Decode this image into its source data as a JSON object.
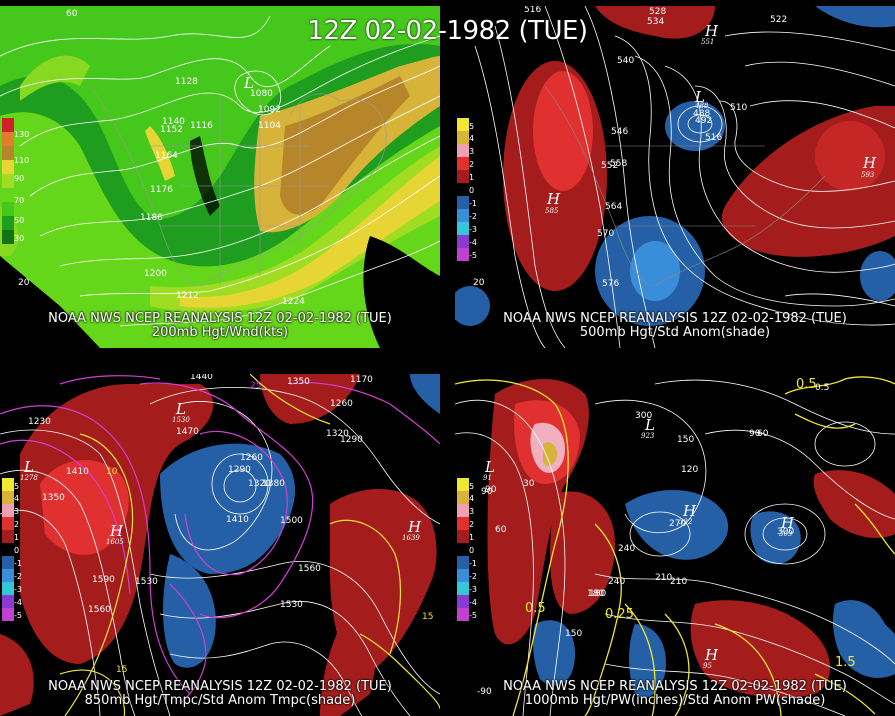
{
  "title": "12Z 02-02-1982 (TUE)",
  "panels": [
    {
      "caption_line1": "NOAA NWS NCEP REANALYSIS 12Z 02-02-1982 (TUE)",
      "caption_line2": "200mb Hgt/Wnd(kts)",
      "legend": [
        "130",
        "110",
        "90",
        "70",
        "50",
        "30"
      ],
      "labels": [
        "1128",
        "1080",
        "1092",
        "1104",
        "1116",
        "1140",
        "1152",
        "1164",
        "1176",
        "1188",
        "1200",
        "1212",
        "1224",
        "20",
        "60"
      ],
      "hl": [
        "L"
      ]
    },
    {
      "caption_line1": "NOAA NWS NCEP REANALYSIS 12Z 02-02-1982 (TUE)",
      "caption_line2": "500mb Hgt/Std Anom(shade)",
      "legend": [
        "5",
        "4",
        "3",
        "2",
        "1",
        "0",
        "-1",
        "-2",
        "-3",
        "-4",
        "-5"
      ],
      "labels": [
        "516",
        "528",
        "534",
        "522",
        "540",
        "546",
        "552",
        "558",
        "564",
        "570",
        "576",
        "488",
        "492",
        "510",
        "516",
        "20"
      ],
      "hl": [
        "H",
        "L",
        "H",
        "H"
      ],
      "hl_vals": [
        "585",
        "488",
        "593",
        "551"
      ]
    },
    {
      "caption_line1": "NOAA NWS NCEP REANALYSIS 12Z 02-02-1982 (TUE)",
      "caption_line2": "850mb Hgt/Tmpc/Std Anom Tmpc(shade)",
      "legend": [
        "5",
        "4",
        "3",
        "2",
        "1",
        "0",
        "-1",
        "-2",
        "-3",
        "-4",
        "-5"
      ],
      "labels": [
        "1440",
        "1350",
        "1170",
        "1260",
        "1230",
        "1470",
        "1320",
        "1290",
        "1260",
        "1290",
        "1320",
        "1380",
        "1410",
        "1500",
        "1410",
        "1350",
        "1530",
        "1590",
        "1560",
        "1560",
        "1530",
        "25",
        "10",
        "15",
        "15"
      ],
      "hl": [
        "L",
        "H",
        "H",
        "L"
      ],
      "hl_vals": [
        "1278",
        "1605",
        "1639",
        "1530"
      ]
    },
    {
      "caption_line1": "NOAA NWS NCEP REANALYSIS 12Z 02-02-1982 (TUE)",
      "caption_line2": "1000mb Hgt/PW(inches)/Std Anom PW(shade)",
      "legend": [
        "5",
        "4",
        "3",
        "2",
        "1",
        "0",
        "-1",
        "-2",
        "-3",
        "-4",
        "-5"
      ],
      "labels": [
        "150",
        "300",
        "90",
        "60",
        "120",
        "210",
        "240",
        "270",
        "300",
        "180",
        "150",
        "90",
        "60",
        "0.5",
        "0.25",
        "0.5",
        "1.5",
        "0.5",
        "90",
        "30",
        "180",
        "210",
        "240",
        "-90"
      ],
      "hl": [
        "L",
        "H",
        "H",
        "H",
        "L"
      ],
      "hl_vals": [
        "91",
        "322",
        "309",
        "95",
        "923"
      ]
    }
  ]
}
